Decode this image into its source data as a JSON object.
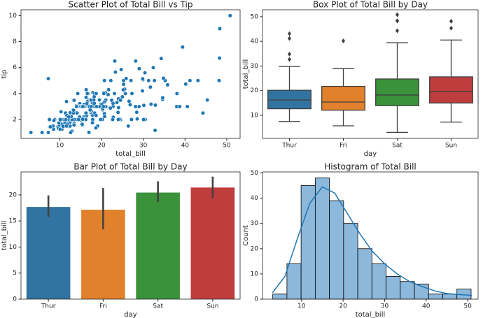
{
  "chart_data": [
    {
      "type": "scatter",
      "title": "Scatter Plot of Total Bill vs Tip",
      "xlabel": "total_bill",
      "ylabel": "tip",
      "color": "#1f77b4",
      "xlim": [
        0.7,
        53.2
      ],
      "xticks": [
        10,
        20,
        30,
        40,
        50
      ],
      "ylim": [
        0.55,
        10.45
      ],
      "yticks": [
        2,
        4,
        6,
        8,
        10
      ],
      "x": [
        16.99,
        10.34,
        21.01,
        23.68,
        24.59,
        25.29,
        8.77,
        26.88,
        15.04,
        14.78,
        10.27,
        35.26,
        15.42,
        18.43,
        14.83,
        21.58,
        10.33,
        16.29,
        16.97,
        20.65,
        17.92,
        20.29,
        15.77,
        39.42,
        19.82,
        17.81,
        13.37,
        12.69,
        21.7,
        19.65,
        9.55,
        18.35,
        15.06,
        20.69,
        17.78,
        24.06,
        16.31,
        16.93,
        18.69,
        31.27,
        16.04,
        17.46,
        13.94,
        9.68,
        30.4,
        18.29,
        22.23,
        32.4,
        28.55,
        18.04,
        12.54,
        10.29,
        34.81,
        9.94,
        25.56,
        19.49,
        38.01,
        26.41,
        11.24,
        48.27,
        20.29,
        13.81,
        11.02,
        18.29,
        17.59,
        20.08,
        16.45,
        3.07,
        20.23,
        15.01,
        12.02,
        17.07,
        26.86,
        25.28,
        14.73,
        10.51,
        17.92,
        27.2,
        22.76,
        17.29,
        19.44,
        16.66,
        10.07,
        32.68,
        15.98,
        34.83,
        13.03,
        18.28,
        24.71,
        21.16,
        28.97,
        22.49,
        5.75,
        16.32,
        22.75,
        40.17,
        27.28,
        12.03,
        21.01,
        12.46,
        11.35,
        15.38,
        44.3,
        22.42,
        20.92,
        15.36,
        20.49,
        25.21,
        18.24,
        14.31,
        14,
        7.25,
        38.07,
        23.95,
        25.71,
        17.31,
        29.93,
        10.65,
        12.43,
        24.08,
        11.69,
        13.42,
        14.26,
        15.95,
        12.48,
        29.8,
        8.52,
        14.52,
        11.38,
        22.82,
        19.08,
        20.27,
        11.17,
        12.26,
        18.26,
        8.51,
        10.33,
        14.15,
        16,
        13.16,
        17.47,
        34.3,
        41.19,
        27.05,
        16.43,
        8.35,
        18.64,
        11.87,
        9.78,
        7.51,
        14.07,
        13.13,
        17.26,
        24.55,
        19.77,
        29.85,
        48.17,
        25,
        13.39,
        16.21,
        17.51,
        24.52,
        20.76,
        31.71,
        10.59,
        10.63,
        50.81,
        15.81,
        7.25,
        31.85,
        16.82,
        32.9,
        17.89,
        14.48,
        34.63,
        34.65,
        23.33,
        45.35,
        23.17,
        40.55,
        20.69,
        30.46,
        18.15,
        23.1,
        28.44,
        15.48,
        16.58,
        7.56,
        10.34,
        43.11,
        13,
        13.51,
        18.71,
        12.74,
        13,
        16.4,
        20.53,
        16.47,
        26.59,
        38.73,
        24.27,
        12.76,
        30.06,
        25.89,
        48.33,
        13.27,
        28.17,
        12.9,
        28.15,
        11.59,
        7.74,
        30.14,
        12.16,
        13.42,
        8.58,
        15.98,
        13.42,
        16.27,
        10.09,
        20.45,
        13.28,
        22.12,
        24.01,
        15.69,
        11.61,
        10.77,
        15.53,
        10.07,
        12.6,
        32.83,
        35.83,
        29.03,
        27.18,
        22.67,
        17.82,
        18.78
      ],
      "y": [
        1.01,
        1.66,
        3.5,
        3.31,
        3.61,
        4.71,
        2,
        3.12,
        1.96,
        3.23,
        1.71,
        5,
        1.57,
        3,
        3.02,
        3.92,
        1.67,
        3.71,
        3.5,
        3.35,
        4.08,
        2.75,
        2.23,
        7.58,
        3.18,
        2.34,
        2,
        2,
        4.3,
        3,
        1.45,
        2.5,
        3,
        2.45,
        3.27,
        3.6,
        2,
        3.07,
        2.31,
        5,
        2.24,
        2.54,
        3.06,
        1.32,
        5.6,
        3,
        5,
        6,
        2.05,
        3,
        2.5,
        2.6,
        5.2,
        1.56,
        4.34,
        3.51,
        3,
        1.5,
        1.76,
        6.73,
        3.21,
        2,
        1.98,
        3.76,
        2.64,
        3.15,
        2.47,
        1,
        2.01,
        2.09,
        1.97,
        3,
        3.14,
        5,
        2.2,
        1.25,
        3.08,
        4,
        3,
        2.71,
        3,
        3.4,
        1.83,
        5,
        2.03,
        5.17,
        2,
        4,
        5.85,
        3,
        3,
        3.5,
        1,
        4.3,
        3.25,
        4.73,
        4,
        1.5,
        3,
        1.5,
        2.5,
        3,
        2.5,
        3.48,
        4.08,
        1.64,
        4.06,
        4.29,
        3.76,
        4,
        3,
        1,
        4,
        2.55,
        4,
        3.5,
        5.07,
        1.5,
        1.8,
        2.92,
        2.31,
        1.68,
        2.5,
        2,
        2.52,
        4.2,
        1.48,
        2,
        2,
        2.18,
        1.5,
        2.83,
        1.5,
        2,
        3.25,
        1.25,
        2,
        2,
        2,
        2.75,
        3.5,
        6.7,
        5,
        5,
        2.3,
        1.5,
        1.36,
        1.63,
        1.73,
        2,
        2.5,
        2,
        2.74,
        2,
        2,
        5.14,
        5,
        3.75,
        2.61,
        2,
        3,
        3.48,
        2.24,
        4.5,
        1.61,
        2,
        10,
        3.16,
        5.15,
        3.18,
        4,
        3.11,
        2,
        2,
        3.55,
        3.68,
        5.65,
        3.5,
        6.5,
        3,
        5,
        2,
        3.5,
        4,
        2.56,
        2.02,
        4,
        1.44,
        2,
        5,
        2,
        2,
        4,
        2.01,
        2,
        2.5,
        4,
        3.23,
        3.41,
        3,
        2.03,
        2.23,
        2,
        5.16,
        9,
        2.5,
        6.5,
        1.1,
        3,
        1.5,
        1.44,
        3.09,
        2.2,
        3.48,
        1.92,
        3,
        1.58,
        2.5,
        2,
        3,
        2.72,
        2.88,
        2,
        3,
        3.39,
        1.47,
        3,
        1.25,
        1,
        1.17,
        4.67,
        5.92,
        2,
        2,
        1.75,
        3
      ]
    },
    {
      "type": "box",
      "title": "Box Plot of Total Bill by Day",
      "xlabel": "day",
      "ylabel": "total_bill",
      "categories": [
        "Thur",
        "Fri",
        "Sat",
        "Sun"
      ],
      "ylim": [
        0.65,
        52.8
      ],
      "yticks": [
        10,
        20,
        30,
        40,
        50
      ],
      "boxes": [
        {
          "color": "#3274a1",
          "whisker_low": 7.51,
          "q1": 12.67,
          "median": 16.2,
          "q3": 20.16,
          "whisker_high": 29.8,
          "outliers": [
            32.68,
            34.83,
            41.19,
            43.11
          ]
        },
        {
          "color": "#e1812c",
          "whisker_low": 5.75,
          "q1": 12.09,
          "median": 15.38,
          "q3": 21.75,
          "whisker_high": 28.97,
          "outliers": [
            40.17
          ]
        },
        {
          "color": "#3a923a",
          "whisker_low": 3.07,
          "q1": 13.91,
          "median": 18.24,
          "q3": 24.74,
          "whisker_high": 39.42,
          "outliers": [
            44.3,
            48.27,
            48.33,
            50.81
          ]
        },
        {
          "color": "#c03d3e",
          "whisker_low": 7.25,
          "q1": 14.99,
          "median": 19.63,
          "q3": 25.6,
          "whisker_high": 40.55,
          "outliers": [
            45.35,
            48.17
          ]
        }
      ]
    },
    {
      "type": "bar",
      "title": "Bar Plot of Total Bill by Day",
      "xlabel": "day",
      "ylabel": "total_bill",
      "categories": [
        "Thur",
        "Fri",
        "Sat",
        "Sun"
      ],
      "values": [
        17.68,
        17.15,
        20.44,
        21.41
      ],
      "ci_low": [
        15.8,
        13.4,
        18.6,
        19.3
      ],
      "ci_high": [
        19.9,
        21.3,
        22.6,
        23.5
      ],
      "colors": [
        "#3274a1",
        "#e1812c",
        "#3a923a",
        "#c03d3e"
      ],
      "ylim": [
        0,
        24.4
      ],
      "yticks": [
        0,
        5,
        10,
        15,
        20
      ]
    },
    {
      "type": "histogram",
      "title": "Histogram of Total Bill",
      "xlabel": "total_bill",
      "ylabel": "Count",
      "color": "#8cb8dc",
      "line_color": "#1f77b4",
      "bins": [
        3.07,
        6.48,
        9.89,
        13.3,
        16.71,
        20.12,
        23.53,
        26.94,
        30.35,
        33.76,
        37.17,
        40.58,
        43.99,
        47.4,
        50.81
      ],
      "counts": [
        2,
        14,
        45,
        48,
        39,
        30,
        20,
        14,
        9,
        7,
        6,
        2,
        2,
        4
      ],
      "kde_x": [
        3,
        6,
        9,
        12,
        15,
        18,
        21,
        24,
        27,
        30,
        33,
        36,
        39,
        42,
        45,
        48,
        51
      ],
      "kde_y": [
        2.5,
        9,
        24,
        38,
        44.5,
        42,
        34,
        26,
        19,
        14,
        10,
        7,
        5,
        3.3,
        2.2,
        1.8,
        1.5
      ],
      "xlim": [
        0.6,
        52.5
      ],
      "xticks": [
        10,
        20,
        30,
        40,
        50
      ],
      "ylim": [
        0,
        50.4
      ],
      "yticks": [
        0,
        10,
        20,
        30,
        40,
        50
      ]
    }
  ]
}
